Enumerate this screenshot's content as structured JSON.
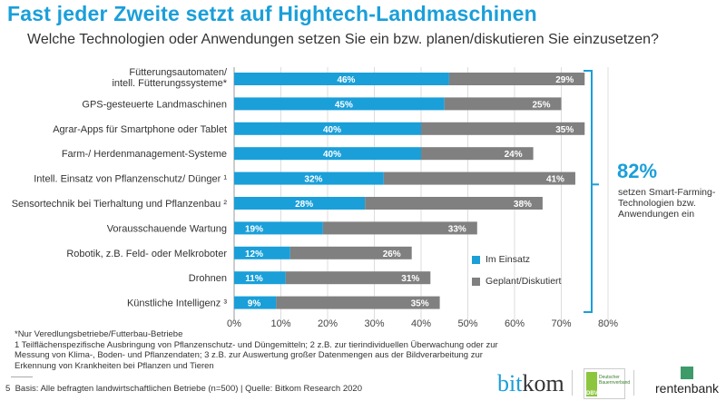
{
  "title": "Fast jeder Zweite setzt auf Hightech-Landmaschinen",
  "subtitle": "Welche Technologien oder Anwendungen setzen Sie ein bzw. planen/diskutieren Sie einzusetzen?",
  "colors": {
    "in_use": "#1a9fd9",
    "planned": "#808080",
    "accent": "#1a9fd9"
  },
  "chart_data": {
    "type": "bar",
    "orientation": "horizontal-stacked",
    "categories": [
      "Fütterungsautomaten/ intell. Fütterungssysteme*",
      "GPS-gesteuerte Landmaschinen",
      "Agrar-Apps für Smartphone oder Tablet",
      "Farm-/ Herdenmanagement-Systeme",
      "Intell. Einsatz von Pflanzenschutz/ Dünger ¹",
      "Sensortechnik bei Tierhaltung und Pflanzenbau ²",
      "Vorausschauende Wartung",
      "Robotik, z.B. Feld- oder Melkroboter",
      "Drohnen",
      "Künstliche Intelligenz ³"
    ],
    "series": [
      {
        "name": "Im Einsatz",
        "values": [
          46,
          45,
          40,
          40,
          32,
          28,
          19,
          12,
          11,
          9
        ]
      },
      {
        "name": "Geplant/Diskutiert",
        "values": [
          29,
          25,
          35,
          24,
          41,
          38,
          33,
          26,
          31,
          35
        ]
      }
    ],
    "xlim": [
      0,
      80
    ],
    "xticks": [
      "0%",
      "10%",
      "20%",
      "30%",
      "40%",
      "50%",
      "60%",
      "70%",
      "80%"
    ],
    "grid": true,
    "legend": "right",
    "annotation": {
      "value": "82%",
      "text": "setzen Smart-Farming-Technologien bzw. Anwendungen ein"
    }
  },
  "footnotes": {
    "star": "*Nur Veredlungsbetriebe/Futterbau-Betriebe",
    "lines": "1 Teilflächenspezifische Ausbringung von Pflanzenschutz- und Düngemitteln; 2 z.B. zur tierindividuellen Überwachung oder zur Messung von Klima-, Boden- und Pflanzendaten; 3 z.B. zur Auswertung großer Datenmengen aus der Bildverarbeitung zur Erkennung von Krankheiten bei Pflanzen und Tieren",
    "page": "5",
    "basis": "Basis: Alle befragten landwirtschaftlichen Betriebe (n=500) | Quelle: Bitkom Research 2020"
  },
  "logos": {
    "bitkom": "bitkom",
    "dbv": "Deutscher Bauernverband",
    "dbv_short": "DBV",
    "rentenbank": "rentenbank"
  }
}
